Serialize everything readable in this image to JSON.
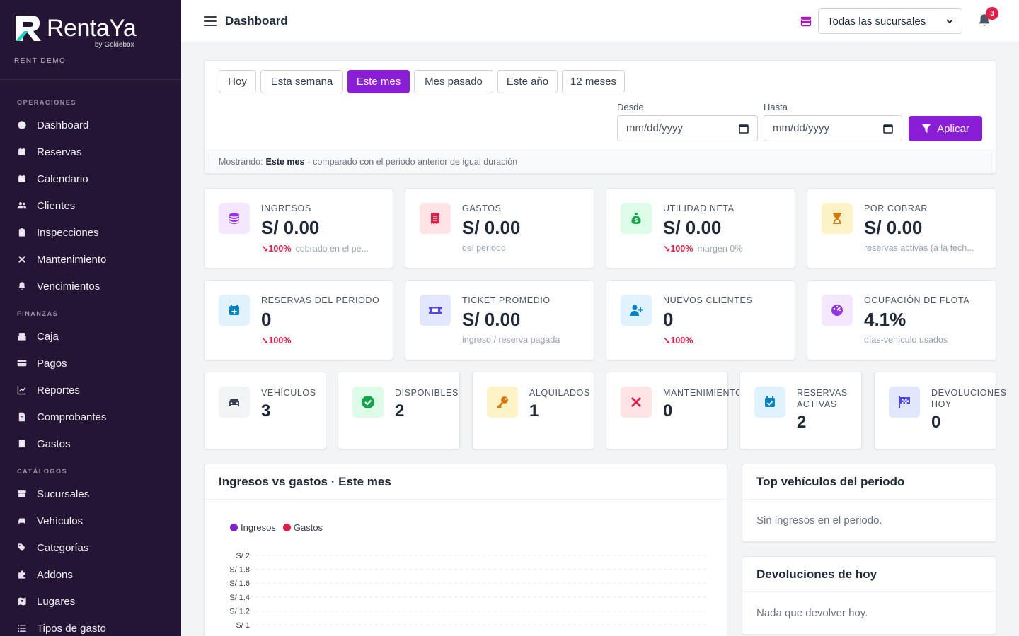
{
  "brand": {
    "name": "RentaYa",
    "by": "by Gokiebox",
    "sub": "RENT DEMO"
  },
  "sidebar": {
    "sections": [
      {
        "title": "OPERACIONES",
        "items": [
          {
            "label": "Dashboard",
            "icon": "gauge-icon"
          },
          {
            "label": "Reservas",
            "icon": "calendar-check-icon"
          },
          {
            "label": "Calendario",
            "icon": "calendar-icon"
          },
          {
            "label": "Clientes",
            "icon": "users-icon"
          },
          {
            "label": "Inspecciones",
            "icon": "clipboard-check-icon"
          },
          {
            "label": "Mantenimiento",
            "icon": "tools-icon"
          },
          {
            "label": "Vencimientos",
            "icon": "bell-icon"
          }
        ]
      },
      {
        "title": "FINANZAS",
        "items": [
          {
            "label": "Caja",
            "icon": "cash-register-icon"
          },
          {
            "label": "Pagos",
            "icon": "credit-card-icon"
          },
          {
            "label": "Reportes",
            "icon": "line-chart-icon"
          },
          {
            "label": "Comprobantes",
            "icon": "file-invoice-icon"
          },
          {
            "label": "Gastos",
            "icon": "receipt-icon"
          }
        ]
      },
      {
        "title": "CATÁLOGOS",
        "items": [
          {
            "label": "Sucursales",
            "icon": "store-icon"
          },
          {
            "label": "Vehículos",
            "icon": "car-icon"
          },
          {
            "label": "Categorías",
            "icon": "tags-icon"
          },
          {
            "label": "Addons",
            "icon": "puzzle-icon"
          },
          {
            "label": "Lugares",
            "icon": "map-pin-icon"
          },
          {
            "label": "Tipos de gasto",
            "icon": "list-icon"
          }
        ]
      }
    ]
  },
  "topbar": {
    "title": "Dashboard",
    "branch": "Todas las sucursales",
    "notifications": "3"
  },
  "filters": {
    "ranges": [
      "Hoy",
      "Esta semana",
      "Este mes",
      "Mes pasado",
      "Este año",
      "12 meses"
    ],
    "active": "Este mes",
    "from_label": "Desde",
    "to_label": "Hasta",
    "date_placeholder": "mm/dd/yyyy",
    "apply": "Aplicar",
    "showing_label": "Mostrando:",
    "showing_value": "Este mes",
    "showing_note": "· comparado con el periodo anterior de igual duración"
  },
  "kpis": [
    {
      "label": "INGRESOS",
      "value": "S/ 0.00",
      "trend": "↘100%",
      "note": "cobrado en el pe...",
      "color": "#9333ea",
      "bg": "#f3e8ff",
      "icon": "coins-icon"
    },
    {
      "label": "GASTOS",
      "value": "S/ 0.00",
      "trend": "",
      "note": "del periodo",
      "color": "#e11d48",
      "bg": "#ffe4e6",
      "icon": "receipt-icon"
    },
    {
      "label": "UTILIDAD NETA",
      "value": "S/ 0.00",
      "trend": "↘100%",
      "note": "margen 0%",
      "color": "#16a34a",
      "bg": "#dcfce7",
      "icon": "money-bag-icon"
    },
    {
      "label": "POR COBRAR",
      "value": "S/ 0.00",
      "trend": "",
      "note": "reservas activas (a la fech...",
      "color": "#d97706",
      "bg": "#fef3c7",
      "icon": "hourglass-icon"
    },
    {
      "label": "RESERVAS DEL PERIODO",
      "value": "0",
      "trend": "↘100%",
      "note": "",
      "color": "#0284c7",
      "bg": "#e0f2fe",
      "icon": "calendar-plus-icon"
    },
    {
      "label": "TICKET PROMEDIO",
      "value": "S/ 0.00",
      "trend": "",
      "note": "ingreso / reserva pagada",
      "color": "#4f46e5",
      "bg": "#e0e7ff",
      "icon": "ticket-icon"
    },
    {
      "label": "NUEVOS CLIENTES",
      "value": "0",
      "trend": "↘100%",
      "note": "",
      "color": "#0284c7",
      "bg": "#e0f2fe",
      "icon": "user-plus-icon"
    },
    {
      "label": "OCUPACIÓN DE FLOTA",
      "value": "4.1%",
      "trend": "",
      "note": "días-vehículo usados",
      "color": "#9333ea",
      "bg": "#f3e8ff",
      "icon": "gauge-icon"
    }
  ],
  "fleet": [
    {
      "label": "VEHÍCULOS",
      "value": "3",
      "color": "#374151",
      "bg": "#f3f4f6",
      "icon": "car-icon"
    },
    {
      "label": "DISPONIBLES",
      "value": "2",
      "color": "#16a34a",
      "bg": "#dcfce7",
      "icon": "check-circle-icon"
    },
    {
      "label": "ALQUILADOS",
      "value": "1",
      "color": "#d97706",
      "bg": "#fef3c7",
      "icon": "key-icon"
    },
    {
      "label": "MANTENIMIENTO",
      "value": "0",
      "color": "#e11d48",
      "bg": "#ffe4e6",
      "icon": "tools-icon"
    },
    {
      "label": "RESERVAS ACTIVAS",
      "value": "2",
      "color": "#0284c7",
      "bg": "#e0f2fe",
      "icon": "calendar-check-icon"
    },
    {
      "label": "DEVOLUCIONES HOY",
      "value": "0",
      "color": "#4f46e5",
      "bg": "#e0e7ff",
      "icon": "flag-checkered-icon"
    }
  ],
  "chart": {
    "title": "Ingresos vs gastos · Este mes"
  },
  "chart_data": {
    "type": "line",
    "title": "Ingresos vs gastos · Este mes",
    "series": [
      {
        "name": "Ingresos",
        "values": [],
        "color": "#7e22ce"
      },
      {
        "name": "Gastos",
        "values": [],
        "color": "#e11d48"
      }
    ],
    "y_ticks": [
      "S/ 2",
      "S/ 1.8",
      "S/ 1.6",
      "S/ 1.4",
      "S/ 1.2",
      "S/ 1"
    ],
    "ylim": [
      0,
      2
    ],
    "grid": true,
    "legend": "top-left"
  },
  "top_vehicles": {
    "title": "Top vehículos del periodo",
    "empty": "Sin ingresos en el periodo."
  },
  "returns_today": {
    "title": "Devoluciones de hoy",
    "empty": "Nada que devolver hoy."
  }
}
